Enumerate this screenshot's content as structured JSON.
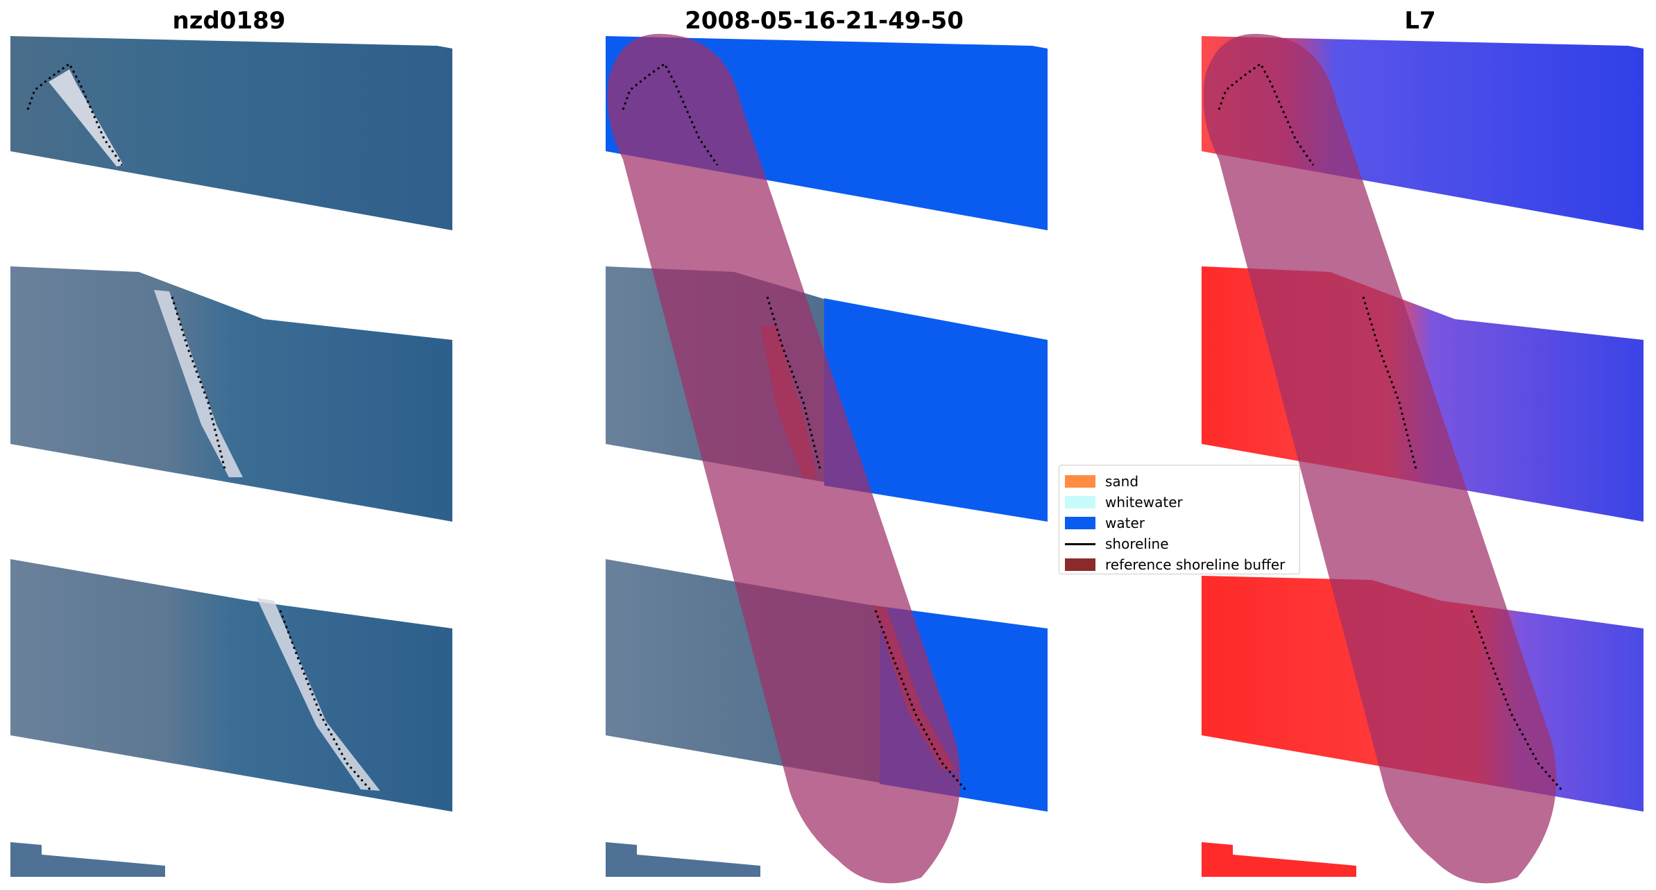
{
  "panels": [
    {
      "title": "nzd0189"
    },
    {
      "title": "2008-05-16-21-49-50"
    },
    {
      "title": "L7"
    }
  ],
  "legend": {
    "items": [
      {
        "label": "sand",
        "color": "#ff8c42",
        "kind": "patch"
      },
      {
        "label": "whitewater",
        "color": "#c8fbfb",
        "kind": "patch"
      },
      {
        "label": "water",
        "color": "#0a5cf0",
        "kind": "patch"
      },
      {
        "label": "shoreline",
        "color": "#000000",
        "kind": "line"
      },
      {
        "label": "reference shoreline buffer",
        "color": "#8b2a2a",
        "kind": "patch"
      }
    ]
  },
  "colors": {
    "rgb_water": "#2e5f8c",
    "rgb_land": "#5b7a95",
    "class_water": "#0a5cf0",
    "class_sand": "#c0392b",
    "buffer_overlay": "#a0306a",
    "index_water": "#3340e6",
    "index_land": "#ff2a2a"
  }
}
